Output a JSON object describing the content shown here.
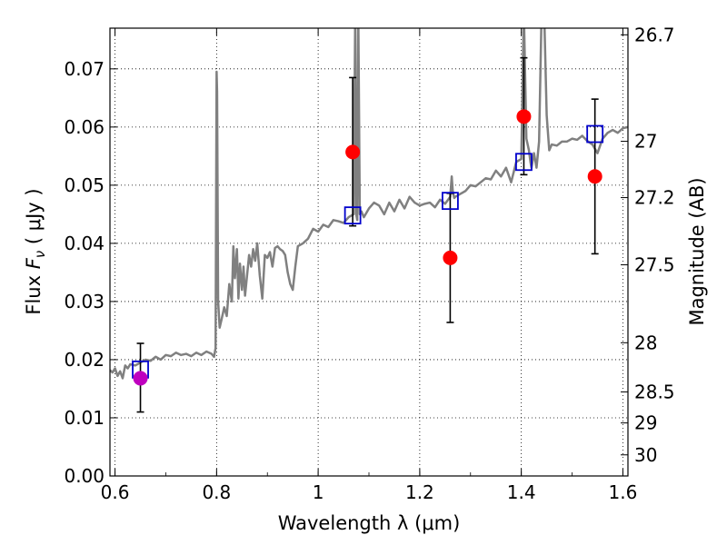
{
  "chart_data": {
    "type": "scatter",
    "xlabel": "Wavelength  λ (μm)",
    "ylabel": "Flux  F_ν  ( μJy )",
    "ylabel_parts": [
      "Flux  ",
      "F",
      "ν",
      "  (  μJy )"
    ],
    "y2label": "Magnitude (AB)",
    "xlim": [
      0.59,
      1.61
    ],
    "ylim": [
      0.0,
      0.077
    ],
    "xticks": [
      0.6,
      0.8,
      1.0,
      1.2,
      1.4,
      1.6
    ],
    "xtick_labels": [
      "0.6",
      "0.8",
      "1",
      "1.2",
      "1.4",
      "1.6"
    ],
    "yticks": [
      0.0,
      0.01,
      0.02,
      0.03,
      0.04,
      0.05,
      0.06,
      0.07
    ],
    "ytick_labels": [
      "0.00",
      "0.01",
      "0.02",
      "0.03",
      "0.04",
      "0.05",
      "0.06",
      "0.07"
    ],
    "y2ticks": [
      {
        "label": "26.7",
        "mag": 26.7
      },
      {
        "label": "27",
        "mag": 27.0
      },
      {
        "label": "27.2",
        "mag": 27.2
      },
      {
        "label": "27.5",
        "mag": 27.5
      },
      {
        "label": "28",
        "mag": 28.0
      },
      {
        "label": "28.5",
        "mag": 28.5
      },
      {
        "label": "29",
        "mag": 29.0
      },
      {
        "label": "30",
        "mag": 30.0
      }
    ],
    "grid": true,
    "colors": {
      "spectrum": "#808080",
      "observed": "#ff0000",
      "observed_optical": "#bf00bf",
      "model": "#0000cc",
      "errorbar": "#000000"
    },
    "observed_points": [
      {
        "x": 0.65,
        "y": 0.0168,
        "yerr_low": 0.0058,
        "yerr_high": 0.006,
        "color": "#bf00bf"
      },
      {
        "x": 1.068,
        "y": 0.0557,
        "yerr_low": 0.0127,
        "yerr_high": 0.0128,
        "color": "#ff0000"
      },
      {
        "x": 1.26,
        "y": 0.0375,
        "yerr_low": 0.0111,
        "yerr_high": 0.0111,
        "color": "#ff0000"
      },
      {
        "x": 1.405,
        "y": 0.0618,
        "yerr_low": 0.01,
        "yerr_high": 0.0101,
        "color": "#ff0000"
      },
      {
        "x": 1.545,
        "y": 0.0515,
        "yerr_low": 0.0133,
        "yerr_high": 0.0133,
        "color": "#ff0000"
      }
    ],
    "model_points": [
      {
        "x": 0.65,
        "y": 0.0183
      },
      {
        "x": 1.068,
        "y": 0.0448
      },
      {
        "x": 1.26,
        "y": 0.0473
      },
      {
        "x": 1.405,
        "y": 0.054
      },
      {
        "x": 1.545,
        "y": 0.0588
      }
    ],
    "spectrum": {
      "x": [
        0.59,
        0.595,
        0.6,
        0.605,
        0.61,
        0.615,
        0.62,
        0.625,
        0.63,
        0.64,
        0.65,
        0.66,
        0.67,
        0.68,
        0.69,
        0.7,
        0.71,
        0.72,
        0.73,
        0.74,
        0.75,
        0.76,
        0.77,
        0.78,
        0.79,
        0.795,
        0.798,
        0.8,
        0.801,
        0.803,
        0.806,
        0.81,
        0.815,
        0.82,
        0.825,
        0.83,
        0.833,
        0.836,
        0.84,
        0.843,
        0.846,
        0.85,
        0.853,
        0.856,
        0.86,
        0.864,
        0.868,
        0.872,
        0.876,
        0.88,
        0.885,
        0.89,
        0.895,
        0.9,
        0.905,
        0.91,
        0.915,
        0.92,
        0.925,
        0.93,
        0.935,
        0.94,
        0.945,
        0.95,
        0.955,
        0.96,
        0.97,
        0.98,
        0.99,
        1.0,
        1.01,
        1.02,
        1.03,
        1.04,
        1.05,
        1.06,
        1.07,
        1.073,
        1.075,
        1.077,
        1.079,
        1.082,
        1.085,
        1.09,
        1.1,
        1.11,
        1.12,
        1.13,
        1.14,
        1.15,
        1.16,
        1.17,
        1.18,
        1.19,
        1.2,
        1.21,
        1.22,
        1.23,
        1.24,
        1.25,
        1.26,
        1.263,
        1.265,
        1.268,
        1.27,
        1.28,
        1.29,
        1.3,
        1.31,
        1.32,
        1.33,
        1.34,
        1.35,
        1.36,
        1.37,
        1.38,
        1.39,
        1.4,
        1.405,
        1.41,
        1.415,
        1.418,
        1.42,
        1.425,
        1.43,
        1.435,
        1.44,
        1.445,
        1.45,
        1.455,
        1.46,
        1.47,
        1.48,
        1.49,
        1.5,
        1.51,
        1.52,
        1.53,
        1.54,
        1.55,
        1.56,
        1.57,
        1.58,
        1.59,
        1.6,
        1.61
      ],
      "y": [
        0.0182,
        0.0178,
        0.0185,
        0.0172,
        0.018,
        0.0168,
        0.019,
        0.0185,
        0.0192,
        0.019,
        0.0195,
        0.02,
        0.0198,
        0.0205,
        0.02,
        0.0208,
        0.0206,
        0.0212,
        0.0208,
        0.021,
        0.0206,
        0.0212,
        0.0208,
        0.0214,
        0.021,
        0.0205,
        0.022,
        0.0695,
        0.066,
        0.03,
        0.0255,
        0.027,
        0.029,
        0.0275,
        0.033,
        0.03,
        0.0395,
        0.034,
        0.039,
        0.0305,
        0.0365,
        0.032,
        0.036,
        0.031,
        0.0345,
        0.038,
        0.036,
        0.039,
        0.037,
        0.04,
        0.0345,
        0.0305,
        0.038,
        0.0375,
        0.0385,
        0.036,
        0.0392,
        0.0395,
        0.039,
        0.0387,
        0.038,
        0.035,
        0.033,
        0.032,
        0.036,
        0.0395,
        0.04,
        0.0408,
        0.0425,
        0.042,
        0.0432,
        0.0428,
        0.044,
        0.0438,
        0.0435,
        0.0445,
        0.045,
        0.08,
        0.045,
        0.044,
        0.08,
        0.045,
        0.0455,
        0.0445,
        0.046,
        0.047,
        0.0465,
        0.045,
        0.047,
        0.0455,
        0.0475,
        0.046,
        0.048,
        0.047,
        0.0465,
        0.0468,
        0.047,
        0.0462,
        0.0475,
        0.0468,
        0.048,
        0.0515,
        0.049,
        0.0478,
        0.048,
        0.0485,
        0.049,
        0.05,
        0.0498,
        0.0505,
        0.0512,
        0.051,
        0.0525,
        0.0515,
        0.053,
        0.0505,
        0.054,
        0.0545,
        0.08,
        0.058,
        0.056,
        0.054,
        0.053,
        0.0555,
        0.053,
        0.0575,
        0.08,
        0.08,
        0.062,
        0.056,
        0.057,
        0.0568,
        0.0575,
        0.0575,
        0.058,
        0.0578,
        0.0585,
        0.0576,
        0.057,
        0.0555,
        0.058,
        0.059,
        0.0595,
        0.059,
        0.0598,
        0.06
      ]
    }
  }
}
